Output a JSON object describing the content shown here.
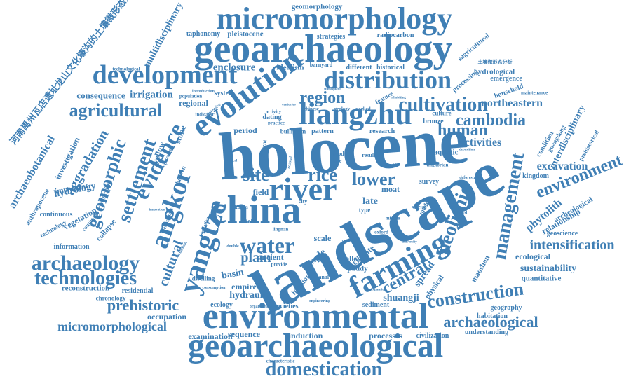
{
  "theme": {
    "word_color": "#3f7fb5",
    "background": "#ffffff"
  },
  "words": [
    "holocene",
    "landscape",
    "geoarchaeology",
    "micromorphology",
    "environmental",
    "geoarchaeological",
    "evolution",
    "china",
    "liangzhu",
    "river",
    "farming",
    "development",
    "distribution",
    "yangtze",
    "angkor",
    "domestication",
    "archaeology",
    "technologies",
    "agricultural",
    "water",
    "management",
    "neolithic",
    "construction",
    "cultivation",
    "environment",
    "evidence",
    "settlement",
    "geomorphic",
    "intensification",
    "archaeological",
    "cambodia",
    "human",
    "micromorphological",
    "lower",
    "rice",
    "site",
    "central",
    "prehistoric",
    "region",
    "plain",
    "cultural",
    "aggradation",
    "archaeobotanical",
    "hydrology",
    "excavation",
    "northeastern",
    "activities",
    "phytolith",
    "enclosure",
    "irrigation",
    "consequence",
    "hydraulic",
    "shuangji",
    "sustainability",
    "ecological",
    "spread",
    "interdisciplinary",
    "multidisciplinary",
    "geomorphology",
    "pleistocene",
    "taphonomy",
    "strategies",
    "radiocarbon",
    "sagricultural",
    "emergence",
    "processing",
    "hydrological",
    "household",
    "stone",
    "yellow",
    "investigation",
    "collection",
    "important",
    "vegetation",
    "anthropocene",
    "continuous",
    "technology",
    "information",
    "collapse",
    "residential",
    "reconstruction",
    "chronology",
    "occupation",
    "examination",
    "sequence",
    "induction",
    "processes",
    "civilization",
    "understanding",
    "habitation",
    "geography",
    "quantitative",
    "relationship",
    "archeological",
    "geoscience",
    "kingdom",
    "condition",
    "guangdong",
    "prehistorical",
    "maoshan",
    "physical",
    "empire",
    "basin",
    "ancient",
    "paddy",
    "walled",
    "climate",
    "temple",
    "incision",
    "sediment",
    "societies",
    "ecology",
    "dwelling",
    "period",
    "dating",
    "pattern",
    "research",
    "bronze",
    "culture",
    "aquatic",
    "survey",
    "moat",
    "late",
    "field",
    "delta",
    "scale",
    "idealism",
    "barnyard",
    "different",
    "historical",
    "system",
    "regional",
    "population",
    "technological",
    "heaven",
    "economic",
    "petrology",
    "model",
    "type",
    "social",
    "korea",
    "city",
    "result",
    "flood",
    "date",
    "angkorian",
    "bulliform",
    "practice",
    "chinese",
    "geology",
    "peaked",
    "activity",
    "feature",
    "maintenance",
    "河南禹州瓦店遗址龙山文化壕沟的土壤微形态分析",
    "土壤微形态分析",
    "indicator",
    "introduction",
    "consumption",
    "provide",
    "analysis",
    "characteristic",
    "engineering",
    "organization",
    "lingnan",
    "oxford",
    "university",
    "detailed",
    "deforestation",
    "deposition",
    "middle",
    "double",
    "present",
    "continuity",
    "formation",
    "intensive",
    "urbanism",
    "subsequent",
    "century",
    "centuries",
    "inhabiting",
    "coastal",
    "transition",
    "innovation",
    "expansion",
    "tropical"
  ]
}
